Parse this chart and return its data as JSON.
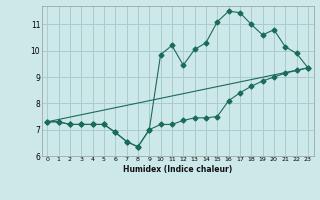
{
  "xlabel": "Humidex (Indice chaleur)",
  "bg_color": "#cce8e8",
  "grid_color": "#aacccc",
  "line_color": "#1a6b5a",
  "xlim": [
    -0.5,
    23.5
  ],
  "ylim": [
    6.0,
    11.7
  ],
  "yticks": [
    6,
    7,
    8,
    9,
    10,
    11
  ],
  "xticks": [
    0,
    1,
    2,
    3,
    4,
    5,
    6,
    7,
    8,
    9,
    10,
    11,
    12,
    13,
    14,
    15,
    16,
    17,
    18,
    19,
    20,
    21,
    22,
    23
  ],
  "line1_x": [
    0,
    1,
    2,
    3,
    4,
    5,
    6,
    7,
    8,
    9,
    10,
    11,
    12,
    13,
    14,
    15,
    16,
    17,
    18,
    19,
    20,
    21,
    22,
    23
  ],
  "line1_y": [
    7.3,
    7.3,
    7.2,
    7.2,
    7.2,
    7.2,
    6.9,
    6.55,
    6.35,
    7.0,
    7.2,
    7.2,
    7.35,
    7.45,
    7.45,
    7.5,
    8.1,
    8.4,
    8.65,
    8.85,
    9.0,
    9.15,
    9.25,
    9.35
  ],
  "line2_x": [
    0,
    1,
    2,
    3,
    4,
    5,
    6,
    7,
    8,
    9,
    10,
    11,
    12,
    13,
    14,
    15,
    16,
    17,
    18,
    19,
    20,
    21,
    22,
    23
  ],
  "line2_y": [
    7.3,
    7.3,
    7.2,
    7.2,
    7.2,
    7.2,
    6.9,
    6.55,
    6.35,
    7.0,
    9.85,
    10.2,
    9.45,
    10.05,
    10.3,
    11.1,
    11.5,
    11.45,
    11.0,
    10.6,
    10.8,
    10.15,
    9.9,
    9.35
  ],
  "line3_x": [
    0,
    23
  ],
  "line3_y": [
    7.3,
    9.35
  ]
}
